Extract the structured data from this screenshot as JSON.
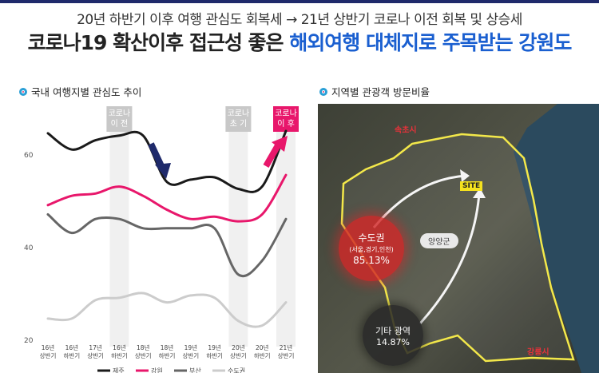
{
  "header": {
    "subtitle": "20년 하반기 이후 여행 관심도 회복세 → 21년 상반기 코로나 이전 회복 및 상승세",
    "headline_dark": "코로나19 확산이후 접근성 좋은 ",
    "headline_blue": "해외여행 대체지로 주목받는 강원도"
  },
  "left_panel": {
    "label": "국내 여행지별 관심도 추이"
  },
  "right_panel": {
    "label": "지역별 관광객 방문비율"
  },
  "chart_data": {
    "type": "line",
    "title": "국내 여행지별 관심도 추이",
    "categories": [
      "16년\n상반기",
      "16년\n하반기",
      "17년\n상반기",
      "16년\n하반기",
      "18년\n상반기",
      "18년\n하반기",
      "19년\n상반기",
      "19년\n하반기",
      "20년\n상반기",
      "20년\n하반기",
      "21년\n상반기"
    ],
    "ylim": [
      20,
      70
    ],
    "yticks": [
      20,
      40,
      60
    ],
    "series": [
      {
        "name": "제주",
        "color": "#1a1a1a",
        "values": [
          64.5,
          61,
          63,
          64,
          64,
          54,
          54.5,
          55,
          52.5,
          53,
          65
        ]
      },
      {
        "name": "강원",
        "color": "#e8176b",
        "values": [
          49,
          51,
          51.5,
          53,
          51,
          48,
          46,
          46.5,
          45.5,
          47,
          55.5
        ]
      },
      {
        "name": "부산",
        "color": "#666666",
        "values": [
          47,
          43,
          46,
          46,
          44,
          44,
          44,
          44,
          34,
          37,
          46
        ]
      },
      {
        "name": "수도권",
        "color": "#cccccc",
        "values": [
          24.5,
          24.5,
          28.5,
          29,
          30,
          28,
          29.5,
          29,
          24,
          23,
          28
        ]
      }
    ],
    "highlights": [
      {
        "label": "코로나\n이 전",
        "index": 3,
        "style": "gray"
      },
      {
        "label": "코로나\n초 기",
        "index": 8,
        "style": "gray"
      },
      {
        "label": "코로나\n이 후",
        "index": 10,
        "style": "pink"
      }
    ],
    "grid": false,
    "legend": "bottom"
  },
  "map": {
    "cities": [
      {
        "name": "속초시"
      },
      {
        "name": "강릉시"
      }
    ],
    "site_label": "SITE",
    "county_label": "양양군",
    "metro": {
      "name": "수도권",
      "sub": "(서울,경기,인천)",
      "pct": "85.13%"
    },
    "other": {
      "name": "기타 광역",
      "pct": "14.87%"
    }
  }
}
